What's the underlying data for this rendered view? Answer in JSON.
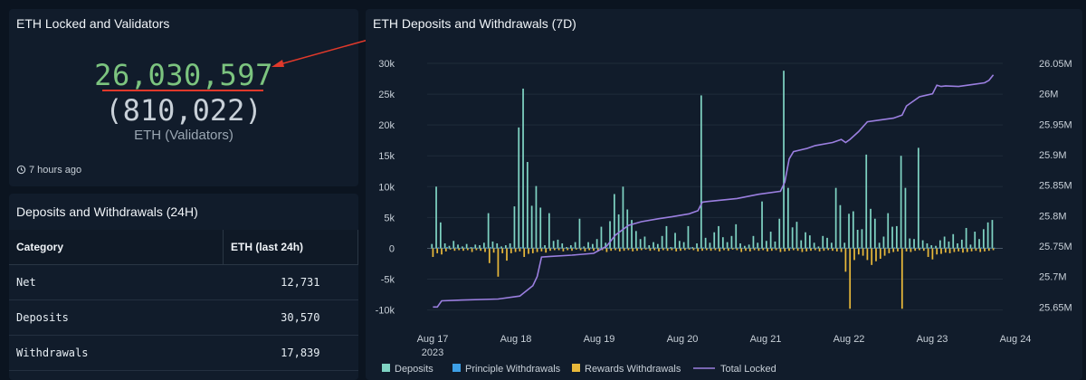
{
  "locked_panel": {
    "title": "ETH Locked and Validators",
    "eth_locked": "26,030,597",
    "validators": "(810,022)",
    "unit_label": "ETH (Validators)",
    "updated": "7 hours ago"
  },
  "table_panel": {
    "title": "Deposits and Withdrawals (24H)",
    "columns": [
      "Category",
      "ETH (last 24h)"
    ],
    "rows": [
      {
        "category": "Net",
        "value": "12,731"
      },
      {
        "category": "Deposits",
        "value": "30,570"
      },
      {
        "category": "Withdrawals",
        "value": "17,839"
      }
    ]
  },
  "chart_panel": {
    "title": "ETH Deposits and Withdrawals (7D)"
  },
  "colors": {
    "deposits": "#7fd3c3",
    "principle": "#3d9fe6",
    "rewards": "#e8b83a",
    "total": "#9b7fe0",
    "big_number": "#7cc47f",
    "annotation": "#e0392b"
  },
  "chart_data": {
    "type": "bar",
    "title": "ETH Deposits and Withdrawals (7D)",
    "x_ticks": [
      "Aug 17",
      "Aug 18",
      "Aug 19",
      "Aug 20",
      "Aug 21",
      "Aug 22",
      "Aug 23",
      "Aug 24"
    ],
    "x_ticks_sub": [
      "2023",
      "",
      "",
      "",
      "",
      "",
      "",
      ""
    ],
    "y_left": {
      "ticks": [
        "30k",
        "25k",
        "20k",
        "15k",
        "10k",
        "5k",
        "0",
        "-5k",
        "-10k"
      ],
      "range": [
        -10500,
        30000
      ]
    },
    "y_right": {
      "ticks": [
        "26.05M",
        "26M",
        "25.95M",
        "25.9M",
        "25.85M",
        "25.8M",
        "25.75M",
        "25.7M",
        "25.65M"
      ],
      "range": [
        25640000,
        26050000
      ]
    },
    "legend": [
      "Deposits",
      "Principle Withdrawals",
      "Rewards Withdrawals",
      "Total Locked"
    ],
    "grid": true,
    "series": [
      {
        "name": "Deposits",
        "type": "bar",
        "values": [
          700,
          10000,
          4200,
          800,
          400,
          1200,
          600,
          300,
          700,
          200,
          600,
          500,
          900,
          5700,
          1100,
          800,
          300,
          500,
          800,
          6800,
          19600,
          25900,
          14000,
          6900,
          10100,
          6600,
          500,
          5700,
          1200,
          1400,
          800,
          200,
          500,
          1000,
          4800,
          300,
          1000,
          700,
          1500,
          3500,
          900,
          4400,
          8800,
          5500,
          10000,
          6300,
          4600,
          2800,
          1500,
          1900,
          500,
          1000,
          700,
          2000,
          3600,
          200,
          2500,
          1200,
          1000,
          3600,
          200,
          800,
          24800,
          1700,
          900,
          2600,
          3600,
          1800,
          1000,
          2000,
          3900,
          800,
          400,
          600,
          2000,
          900,
          7600,
          1200,
          2700,
          1100,
          4800,
          28800,
          9800,
          3400,
          4300,
          1300,
          2600,
          2100,
          900,
          300,
          2000,
          1700,
          900,
          9800,
          7000,
          900,
          5600,
          6000,
          3000,
          3100,
          15200,
          6400,
          4800,
          900,
          1900,
          5700,
          3500,
          3600,
          15000,
          9800,
          1600,
          1500,
          16300,
          1300,
          800,
          500,
          400,
          1300,
          1900,
          1100,
          2300,
          800,
          1400,
          3300,
          600,
          2700,
          1500,
          3100,
          4200,
          4600
        ]
      },
      {
        "name": "Rewards Withdrawals",
        "type": "bar",
        "values": [
          -1400,
          -800,
          -1000,
          -500,
          -200,
          -400,
          -300,
          -400,
          -300,
          -600,
          -300,
          -400,
          -600,
          -2400,
          -700,
          -4600,
          -800,
          -2000,
          -800,
          -600,
          -500,
          -1400,
          -900,
          -800,
          -600,
          -500,
          -700,
          -400,
          -300,
          -300,
          -500,
          -300,
          -400,
          -200,
          -300,
          -500,
          -300,
          -400,
          -500,
          -300,
          -600,
          -400,
          -300,
          -500,
          -400,
          -300,
          -500,
          -400,
          -300,
          -200,
          -400,
          -300,
          -500,
          -300,
          -400,
          -300,
          -500,
          -400,
          -300,
          -200,
          -300,
          -500,
          -400,
          -300,
          -400,
          -300,
          -500,
          -300,
          -400,
          -200,
          -300,
          -600,
          -400,
          -500,
          -300,
          -400,
          -300,
          -500,
          -400,
          -300,
          -600,
          -500,
          -400,
          -300,
          -400,
          -600,
          -500,
          -400,
          -300,
          -500,
          -400,
          -300,
          -400,
          -500,
          -600,
          -3800,
          -9800,
          -1900,
          -1000,
          -1200,
          -1900,
          -2700,
          -2100,
          -1700,
          -1200,
          -800,
          -600,
          -500,
          -9800,
          -500,
          -600,
          -400,
          -300,
          -400,
          -1400,
          -1800,
          -1000,
          -900,
          -700,
          -800,
          -600,
          -500,
          -700,
          -600,
          -500,
          -400,
          -600,
          -500,
          -400,
          -300
        ]
      },
      {
        "name": "Principle Withdrawals",
        "type": "bar",
        "values": [
          100,
          150,
          100,
          200,
          100,
          150,
          100,
          120,
          100,
          150,
          120,
          100,
          150,
          200,
          100,
          150,
          100,
          120,
          150,
          100,
          200,
          150,
          100,
          120,
          100,
          150,
          100,
          120,
          100,
          150,
          100,
          120,
          150,
          100,
          120,
          100,
          150,
          100,
          120,
          100,
          150,
          100,
          120,
          150,
          100,
          120,
          100,
          150,
          100,
          120,
          100,
          150,
          100,
          120,
          100,
          150,
          100,
          120,
          100,
          150,
          100,
          120,
          150,
          100,
          120,
          100,
          150,
          100,
          120,
          100,
          150,
          100,
          120,
          100,
          150,
          100,
          120,
          100,
          150,
          100,
          120,
          100,
          150,
          100,
          120,
          100,
          150,
          100,
          120,
          100,
          150,
          100,
          120,
          100,
          150,
          100,
          120,
          100,
          150,
          100,
          120,
          100,
          150,
          100,
          120,
          100,
          150,
          100,
          120,
          100,
          150,
          100,
          120,
          100,
          150,
          100,
          120,
          100,
          150,
          100,
          120,
          100,
          150,
          100,
          120,
          100,
          150,
          100,
          120,
          100
        ]
      },
      {
        "name": "Total Locked",
        "type": "line",
        "points": [
          [
            0,
            25650000
          ],
          [
            1,
            25650000
          ],
          [
            2,
            25660000
          ],
          [
            5,
            25661000
          ],
          [
            15,
            25663000
          ],
          [
            20,
            25668000
          ],
          [
            23,
            25685000
          ],
          [
            24,
            25700000
          ],
          [
            25,
            25732000
          ],
          [
            27,
            25733000
          ],
          [
            32,
            25735000
          ],
          [
            37,
            25738000
          ],
          [
            40,
            25750000
          ],
          [
            42,
            25768000
          ],
          [
            45,
            25784000
          ],
          [
            48,
            25790000
          ],
          [
            52,
            25795000
          ],
          [
            55,
            25798000
          ],
          [
            59,
            25803000
          ],
          [
            61,
            25808000
          ],
          [
            62,
            25822000
          ],
          [
            63,
            25823000
          ],
          [
            70,
            25828000
          ],
          [
            75,
            25835000
          ],
          [
            80,
            25840000
          ],
          [
            81,
            25855000
          ],
          [
            82,
            25893000
          ],
          [
            83,
            25905000
          ],
          [
            86,
            25910000
          ],
          [
            88,
            25915000
          ],
          [
            92,
            25920000
          ],
          [
            94,
            25925000
          ],
          [
            95,
            25920000
          ],
          [
            96,
            25925000
          ],
          [
            98,
            25938000
          ],
          [
            100,
            25954000
          ],
          [
            103,
            25957000
          ],
          [
            106,
            25960000
          ],
          [
            108,
            25965000
          ],
          [
            109,
            25980000
          ],
          [
            112,
            25995000
          ],
          [
            115,
            26000000
          ],
          [
            116,
            26014000
          ],
          [
            117,
            26012000
          ],
          [
            118,
            26013000
          ],
          [
            121,
            26012000
          ],
          [
            124,
            26015000
          ],
          [
            127,
            26018000
          ],
          [
            128,
            26022000
          ],
          [
            129,
            26031000
          ]
        ]
      }
    ]
  }
}
